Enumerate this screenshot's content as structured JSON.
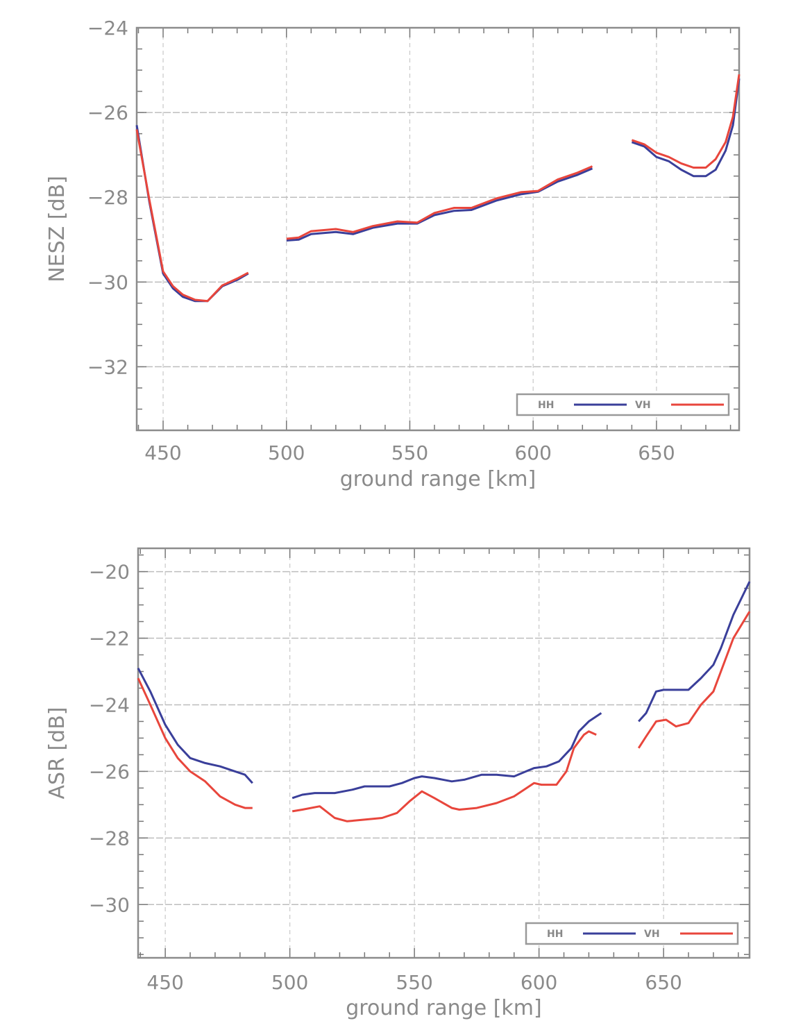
{
  "chart_data": [
    {
      "type": "line",
      "title": "",
      "xlabel": "ground range [km]",
      "ylabel": "NESZ [dB]",
      "xlim": [
        439.3,
        683.5
      ],
      "ylim": [
        -33.5,
        -24
      ],
      "xticks": [
        450,
        500,
        550,
        600,
        650
      ],
      "yticks": [
        -24,
        -26,
        -28,
        -30,
        -32
      ],
      "xminor": 10,
      "yminor": 0.5,
      "grid": true,
      "legend": "bottom-right",
      "series": [
        {
          "name": "HH",
          "color": "#3a3f9a",
          "segments": [
            [
              [
                439.3,
                -26.3
              ],
              [
                444.4,
                -28.1
              ],
              [
                450,
                -29.8
              ],
              [
                454,
                -30.15
              ],
              [
                458,
                -30.35
              ],
              [
                463,
                -30.45
              ],
              [
                468,
                -30.45
              ],
              [
                474,
                -30.1
              ],
              [
                480,
                -29.95
              ],
              [
                484.5,
                -29.8
              ]
            ],
            [
              [
                500,
                -29.02
              ],
              [
                505,
                -29.0
              ],
              [
                510,
                -28.87
              ],
              [
                520,
                -28.82
              ],
              [
                527,
                -28.87
              ],
              [
                535,
                -28.72
              ],
              [
                545,
                -28.62
              ],
              [
                553,
                -28.62
              ],
              [
                560,
                -28.42
              ],
              [
                568,
                -28.32
              ],
              [
                575,
                -28.3
              ],
              [
                585,
                -28.08
              ],
              [
                595,
                -27.93
              ],
              [
                602,
                -27.87
              ],
              [
                610,
                -27.63
              ],
              [
                618,
                -27.47
              ],
              [
                624,
                -27.32
              ]
            ],
            [
              [
                640,
                -26.7
              ],
              [
                645,
                -26.8
              ],
              [
                650,
                -27.05
              ],
              [
                655,
                -27.15
              ],
              [
                660,
                -27.35
              ],
              [
                665,
                -27.5
              ],
              [
                670,
                -27.5
              ],
              [
                674,
                -27.35
              ],
              [
                678,
                -26.9
              ],
              [
                681,
                -26.3
              ],
              [
                683.5,
                -25.2
              ]
            ]
          ]
        },
        {
          "name": "VH",
          "color": "#e8463c",
          "segments": [
            [
              [
                439.3,
                -26.4
              ],
              [
                444.4,
                -28.05
              ],
              [
                450,
                -29.75
              ],
              [
                454,
                -30.1
              ],
              [
                458,
                -30.3
              ],
              [
                463,
                -30.42
              ],
              [
                468,
                -30.45
              ],
              [
                474,
                -30.08
              ],
              [
                480,
                -29.92
              ],
              [
                484.5,
                -29.78
              ]
            ],
            [
              [
                500,
                -28.98
              ],
              [
                505,
                -28.95
              ],
              [
                510,
                -28.8
              ],
              [
                520,
                -28.75
              ],
              [
                527,
                -28.82
              ],
              [
                535,
                -28.68
              ],
              [
                545,
                -28.57
              ],
              [
                553,
                -28.6
              ],
              [
                560,
                -28.37
              ],
              [
                568,
                -28.25
              ],
              [
                575,
                -28.25
              ],
              [
                585,
                -28.03
              ],
              [
                595,
                -27.88
              ],
              [
                602,
                -27.85
              ],
              [
                610,
                -27.58
              ],
              [
                618,
                -27.42
              ],
              [
                624,
                -27.27
              ]
            ],
            [
              [
                640,
                -26.65
              ],
              [
                645,
                -26.75
              ],
              [
                650,
                -26.95
              ],
              [
                655,
                -27.05
              ],
              [
                660,
                -27.2
              ],
              [
                665,
                -27.3
              ],
              [
                670,
                -27.3
              ],
              [
                674,
                -27.1
              ],
              [
                678,
                -26.7
              ],
              [
                681,
                -26.1
              ],
              [
                683.5,
                -25.1
              ]
            ]
          ]
        }
      ]
    },
    {
      "type": "line",
      "title": "",
      "xlabel": "ground range [km]",
      "ylabel": "ASR [dB]",
      "xlim": [
        439.1,
        684.5
      ],
      "ylim": [
        -31.6,
        -19.3
      ],
      "xticks": [
        450,
        500,
        550,
        600,
        650
      ],
      "yticks": [
        -20,
        -22,
        -24,
        -26,
        -28,
        -30
      ],
      "xminor": 10,
      "yminor": 0.5,
      "grid": true,
      "legend": "bottom-right",
      "series": [
        {
          "name": "HH",
          "color": "#3a3f9a",
          "segments": [
            [
              [
                439.1,
                -22.9
              ],
              [
                444,
                -23.6
              ],
              [
                450,
                -24.6
              ],
              [
                455,
                -25.2
              ],
              [
                460,
                -25.6
              ],
              [
                466,
                -25.75
              ],
              [
                472,
                -25.85
              ],
              [
                478,
                -26.0
              ],
              [
                482,
                -26.1
              ],
              [
                485,
                -26.35
              ]
            ],
            [
              [
                501,
                -26.8
              ],
              [
                505,
                -26.7
              ],
              [
                510,
                -26.65
              ],
              [
                518,
                -26.65
              ],
              [
                525,
                -26.55
              ],
              [
                530,
                -26.45
              ],
              [
                540,
                -26.45
              ],
              [
                545,
                -26.35
              ],
              [
                550,
                -26.2
              ],
              [
                553,
                -26.15
              ],
              [
                558,
                -26.2
              ],
              [
                565,
                -26.3
              ],
              [
                570,
                -26.25
              ],
              [
                577,
                -26.1
              ],
              [
                583,
                -26.1
              ],
              [
                590,
                -26.15
              ],
              [
                598,
                -25.9
              ],
              [
                603,
                -25.85
              ],
              [
                608,
                -25.7
              ],
              [
                613,
                -25.3
              ],
              [
                616,
                -24.8
              ],
              [
                620,
                -24.5
              ],
              [
                625,
                -24.25
              ]
            ],
            [
              [
                640,
                -24.5
              ],
              [
                643,
                -24.25
              ],
              [
                647,
                -23.6
              ],
              [
                650,
                -23.55
              ],
              [
                660,
                -23.55
              ],
              [
                665,
                -23.2
              ],
              [
                670,
                -22.8
              ],
              [
                673,
                -22.3
              ],
              [
                678,
                -21.3
              ],
              [
                684.5,
                -20.3
              ]
            ]
          ]
        },
        {
          "name": "VH",
          "color": "#e8463c",
          "segments": [
            [
              [
                439.1,
                -23.2
              ],
              [
                444,
                -24.0
              ],
              [
                450,
                -25.0
              ],
              [
                455,
                -25.6
              ],
              [
                460,
                -26.0
              ],
              [
                466,
                -26.3
              ],
              [
                472,
                -26.75
              ],
              [
                478,
                -27.0
              ],
              [
                482,
                -27.1
              ],
              [
                485,
                -27.1
              ]
            ],
            [
              [
                501,
                -27.2
              ],
              [
                505,
                -27.15
              ],
              [
                512,
                -27.05
              ],
              [
                518,
                -27.4
              ],
              [
                523,
                -27.5
              ],
              [
                530,
                -27.45
              ],
              [
                537,
                -27.4
              ],
              [
                543,
                -27.25
              ],
              [
                548,
                -26.9
              ],
              [
                553,
                -26.6
              ],
              [
                558,
                -26.8
              ],
              [
                565,
                -27.1
              ],
              [
                568,
                -27.15
              ],
              [
                575,
                -27.1
              ],
              [
                583,
                -26.95
              ],
              [
                590,
                -26.75
              ],
              [
                598,
                -26.35
              ],
              [
                601,
                -26.4
              ],
              [
                607,
                -26.4
              ],
              [
                611,
                -26.0
              ],
              [
                614,
                -25.3
              ],
              [
                618,
                -24.9
              ],
              [
                620,
                -24.8
              ],
              [
                623,
                -24.9
              ]
            ],
            [
              [
                640,
                -25.3
              ],
              [
                643,
                -24.95
              ],
              [
                647,
                -24.5
              ],
              [
                651,
                -24.45
              ],
              [
                655,
                -24.65
              ],
              [
                660,
                -24.55
              ],
              [
                665,
                -24.0
              ],
              [
                670,
                -23.6
              ],
              [
                673,
                -23.0
              ],
              [
                678,
                -22.0
              ],
              [
                684.5,
                -21.2
              ]
            ]
          ]
        }
      ]
    }
  ]
}
